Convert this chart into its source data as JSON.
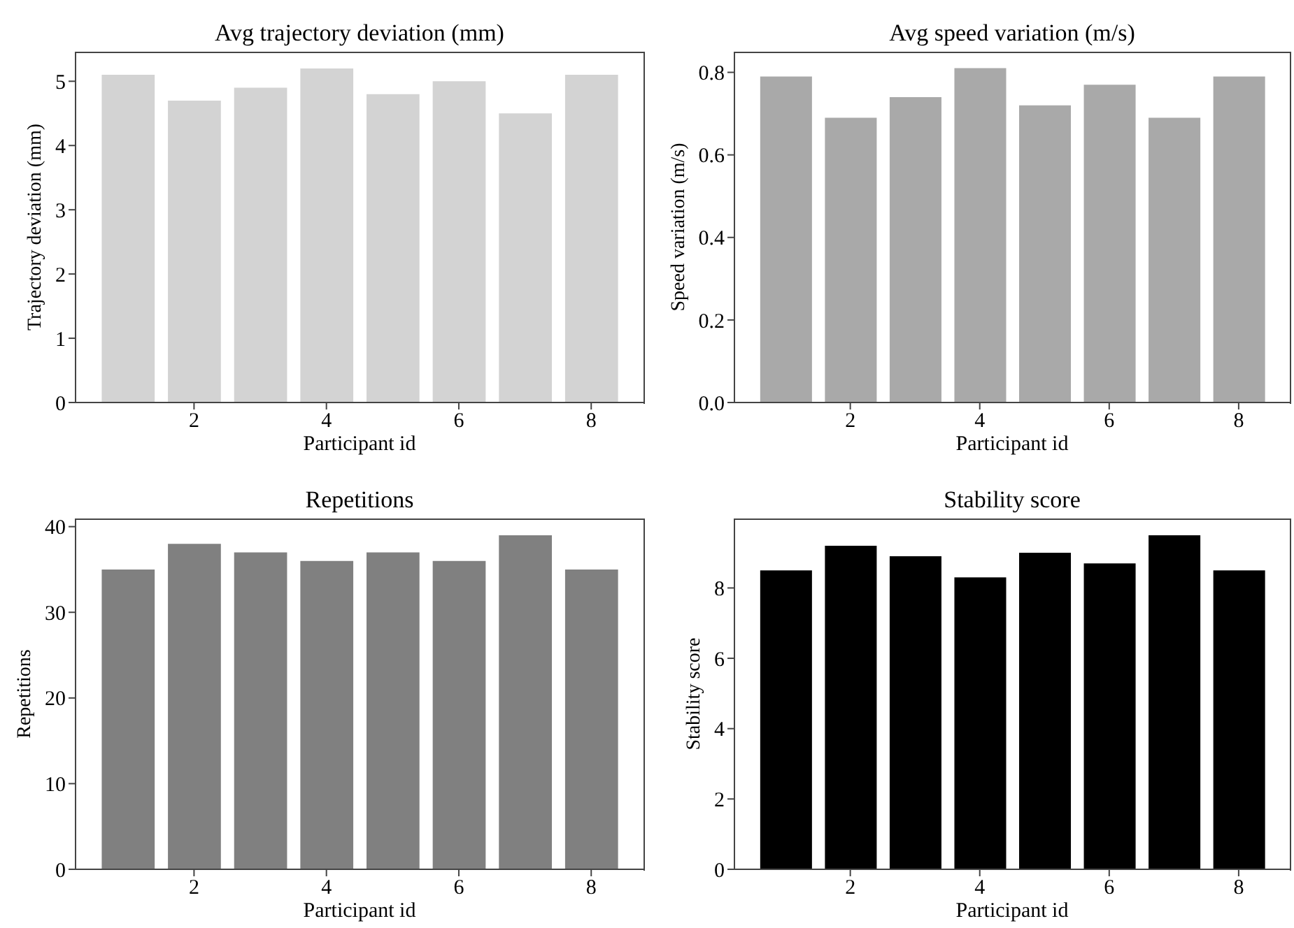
{
  "chart_data": [
    {
      "type": "bar",
      "title": "Avg trajectory deviation (mm)",
      "xlabel": "Participant id",
      "ylabel": "Trajectory deviation (mm)",
      "x": [
        1,
        2,
        3,
        4,
        5,
        6,
        7,
        8
      ],
      "values": [
        5.1,
        4.7,
        4.9,
        5.2,
        4.8,
        5.0,
        4.5,
        5.1
      ],
      "color": "#d3d3d3",
      "xlim": [
        0.21,
        8.79
      ],
      "xticks": [
        2,
        4,
        6,
        8
      ],
      "ylim": [
        0,
        5.46
      ],
      "yticks": [
        0,
        1,
        2,
        3,
        4,
        5
      ]
    },
    {
      "type": "bar",
      "title": "Avg speed variation (m/s)",
      "xlabel": "Participant id",
      "ylabel": "Speed variation (m/s)",
      "x": [
        1,
        2,
        3,
        4,
        5,
        6,
        7,
        8
      ],
      "values": [
        0.79,
        0.69,
        0.74,
        0.81,
        0.72,
        0.77,
        0.69,
        0.79
      ],
      "color": "#a9a9a9",
      "xlim": [
        0.21,
        8.79
      ],
      "xticks": [
        2,
        4,
        6,
        8
      ],
      "ylim": [
        0,
        0.85
      ],
      "yticks": [
        {
          "value": 0,
          "label": "0.0"
        },
        {
          "value": 0.2,
          "label": "0.2"
        },
        {
          "value": 0.4,
          "label": "0.4"
        },
        {
          "value": 0.6,
          "label": "0.6"
        },
        {
          "value": 0.8,
          "label": "0.8"
        }
      ]
    },
    {
      "type": "bar",
      "title": "Repetitions",
      "xlabel": "Participant id",
      "ylabel": "Repetitions",
      "x": [
        1,
        2,
        3,
        4,
        5,
        6,
        7,
        8
      ],
      "values": [
        35,
        38,
        37,
        36,
        37,
        36,
        39,
        35
      ],
      "color": "#808080",
      "xlim": [
        0.21,
        8.79
      ],
      "xticks": [
        2,
        4,
        6,
        8
      ],
      "ylim": [
        0,
        40.95
      ],
      "yticks": [
        0,
        10,
        20,
        30,
        40
      ]
    },
    {
      "type": "bar",
      "title": "Stability score",
      "xlabel": "Participant id",
      "ylabel": "Stability score",
      "x": [
        1,
        2,
        3,
        4,
        5,
        6,
        7,
        8
      ],
      "values": [
        8.5,
        9.2,
        8.9,
        8.3,
        9.0,
        8.7,
        9.5,
        8.5
      ],
      "color": "#000000",
      "xlim": [
        0.21,
        8.79
      ],
      "xticks": [
        2,
        4,
        6,
        8
      ],
      "ylim": [
        0,
        9.975
      ],
      "yticks": [
        0,
        2,
        4,
        6,
        8
      ]
    }
  ]
}
